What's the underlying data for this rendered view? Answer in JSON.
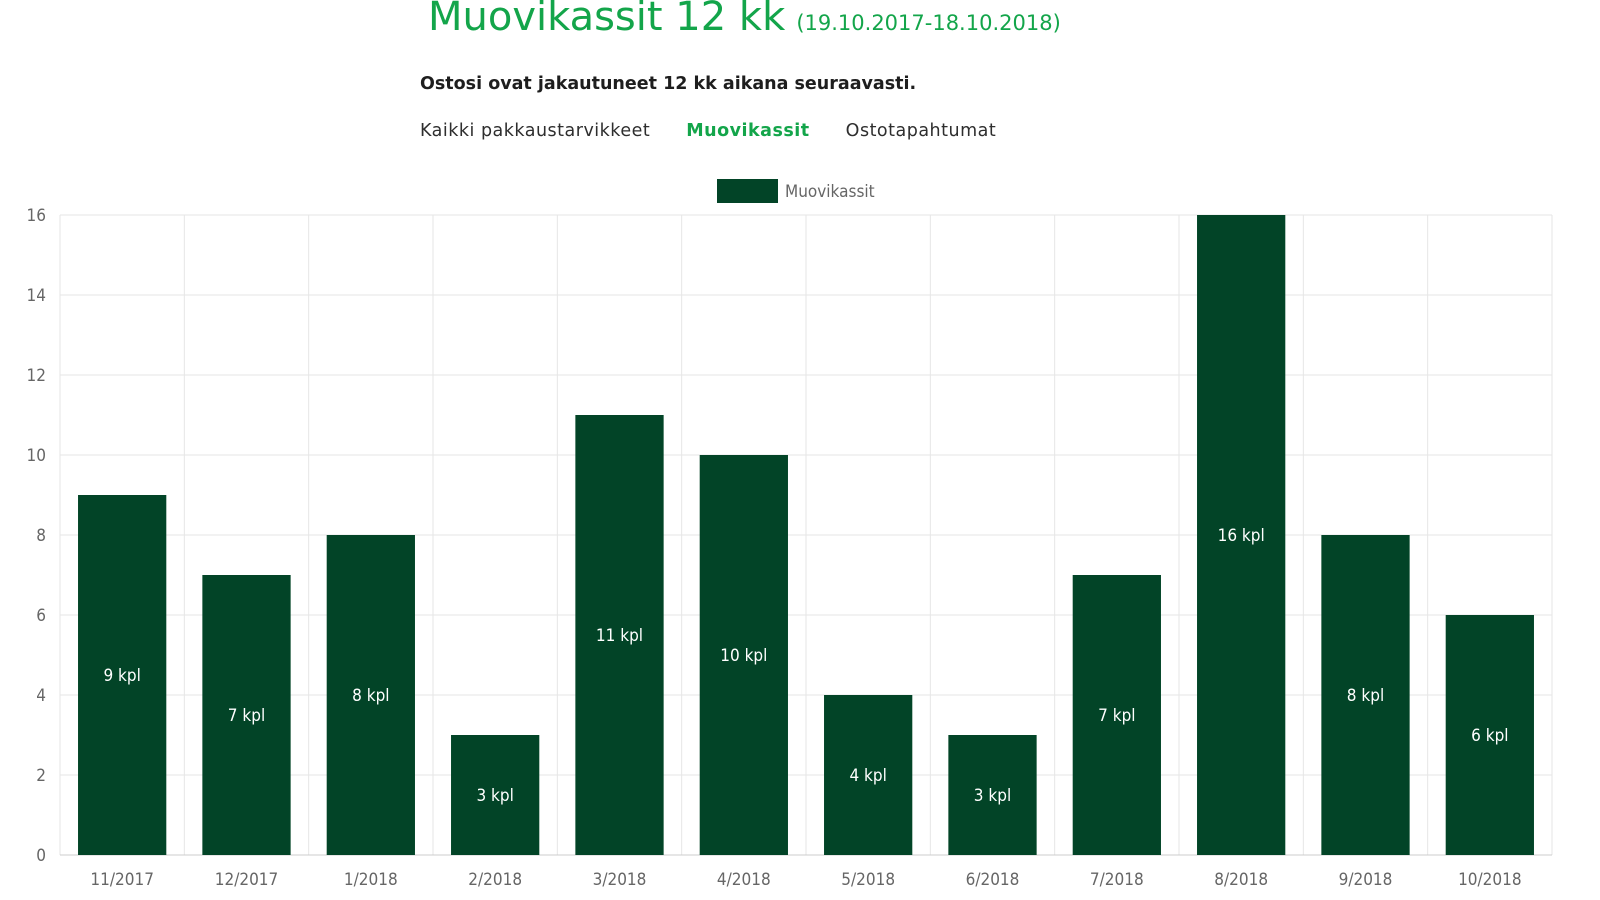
{
  "header": {
    "title": "Muovikassit 12 kk",
    "period": "(19.10.2017-18.10.2018)",
    "subtitle": "Ostosi ovat jakautuneet 12 kk aikana seuraavasti."
  },
  "tabs": [
    {
      "label": "Kaikki pakkaustarvikkeet",
      "active": false
    },
    {
      "label": "Muovikassit",
      "active": true
    },
    {
      "label": "Ostotapahtumat",
      "active": false
    }
  ],
  "colors": {
    "accent": "#13a54a",
    "bar": "#024427",
    "grid": "#e6e6e6",
    "axis_text": "#666666"
  },
  "chart_data": {
    "type": "bar",
    "categories": [
      "11/2017",
      "12/2017",
      "1/2018",
      "2/2018",
      "3/2018",
      "4/2018",
      "5/2018",
      "6/2018",
      "7/2018",
      "8/2018",
      "9/2018",
      "10/2018"
    ],
    "series": [
      {
        "name": "Muovikassit",
        "values": [
          9,
          7,
          8,
          3,
          11,
          10,
          4,
          3,
          7,
          16,
          8,
          6
        ],
        "labels": [
          "9 kpl",
          "7 kpl",
          "8 kpl",
          "3 kpl",
          "11 kpl",
          "10 kpl",
          "4 kpl",
          "3 kpl",
          "7 kpl",
          "16 kpl",
          "8 kpl",
          "6 kpl"
        ]
      }
    ],
    "ylim": [
      0,
      16
    ],
    "yticks": [
      0,
      2,
      4,
      6,
      8,
      10,
      12,
      14,
      16
    ],
    "grid": true,
    "legend": "top-center"
  }
}
